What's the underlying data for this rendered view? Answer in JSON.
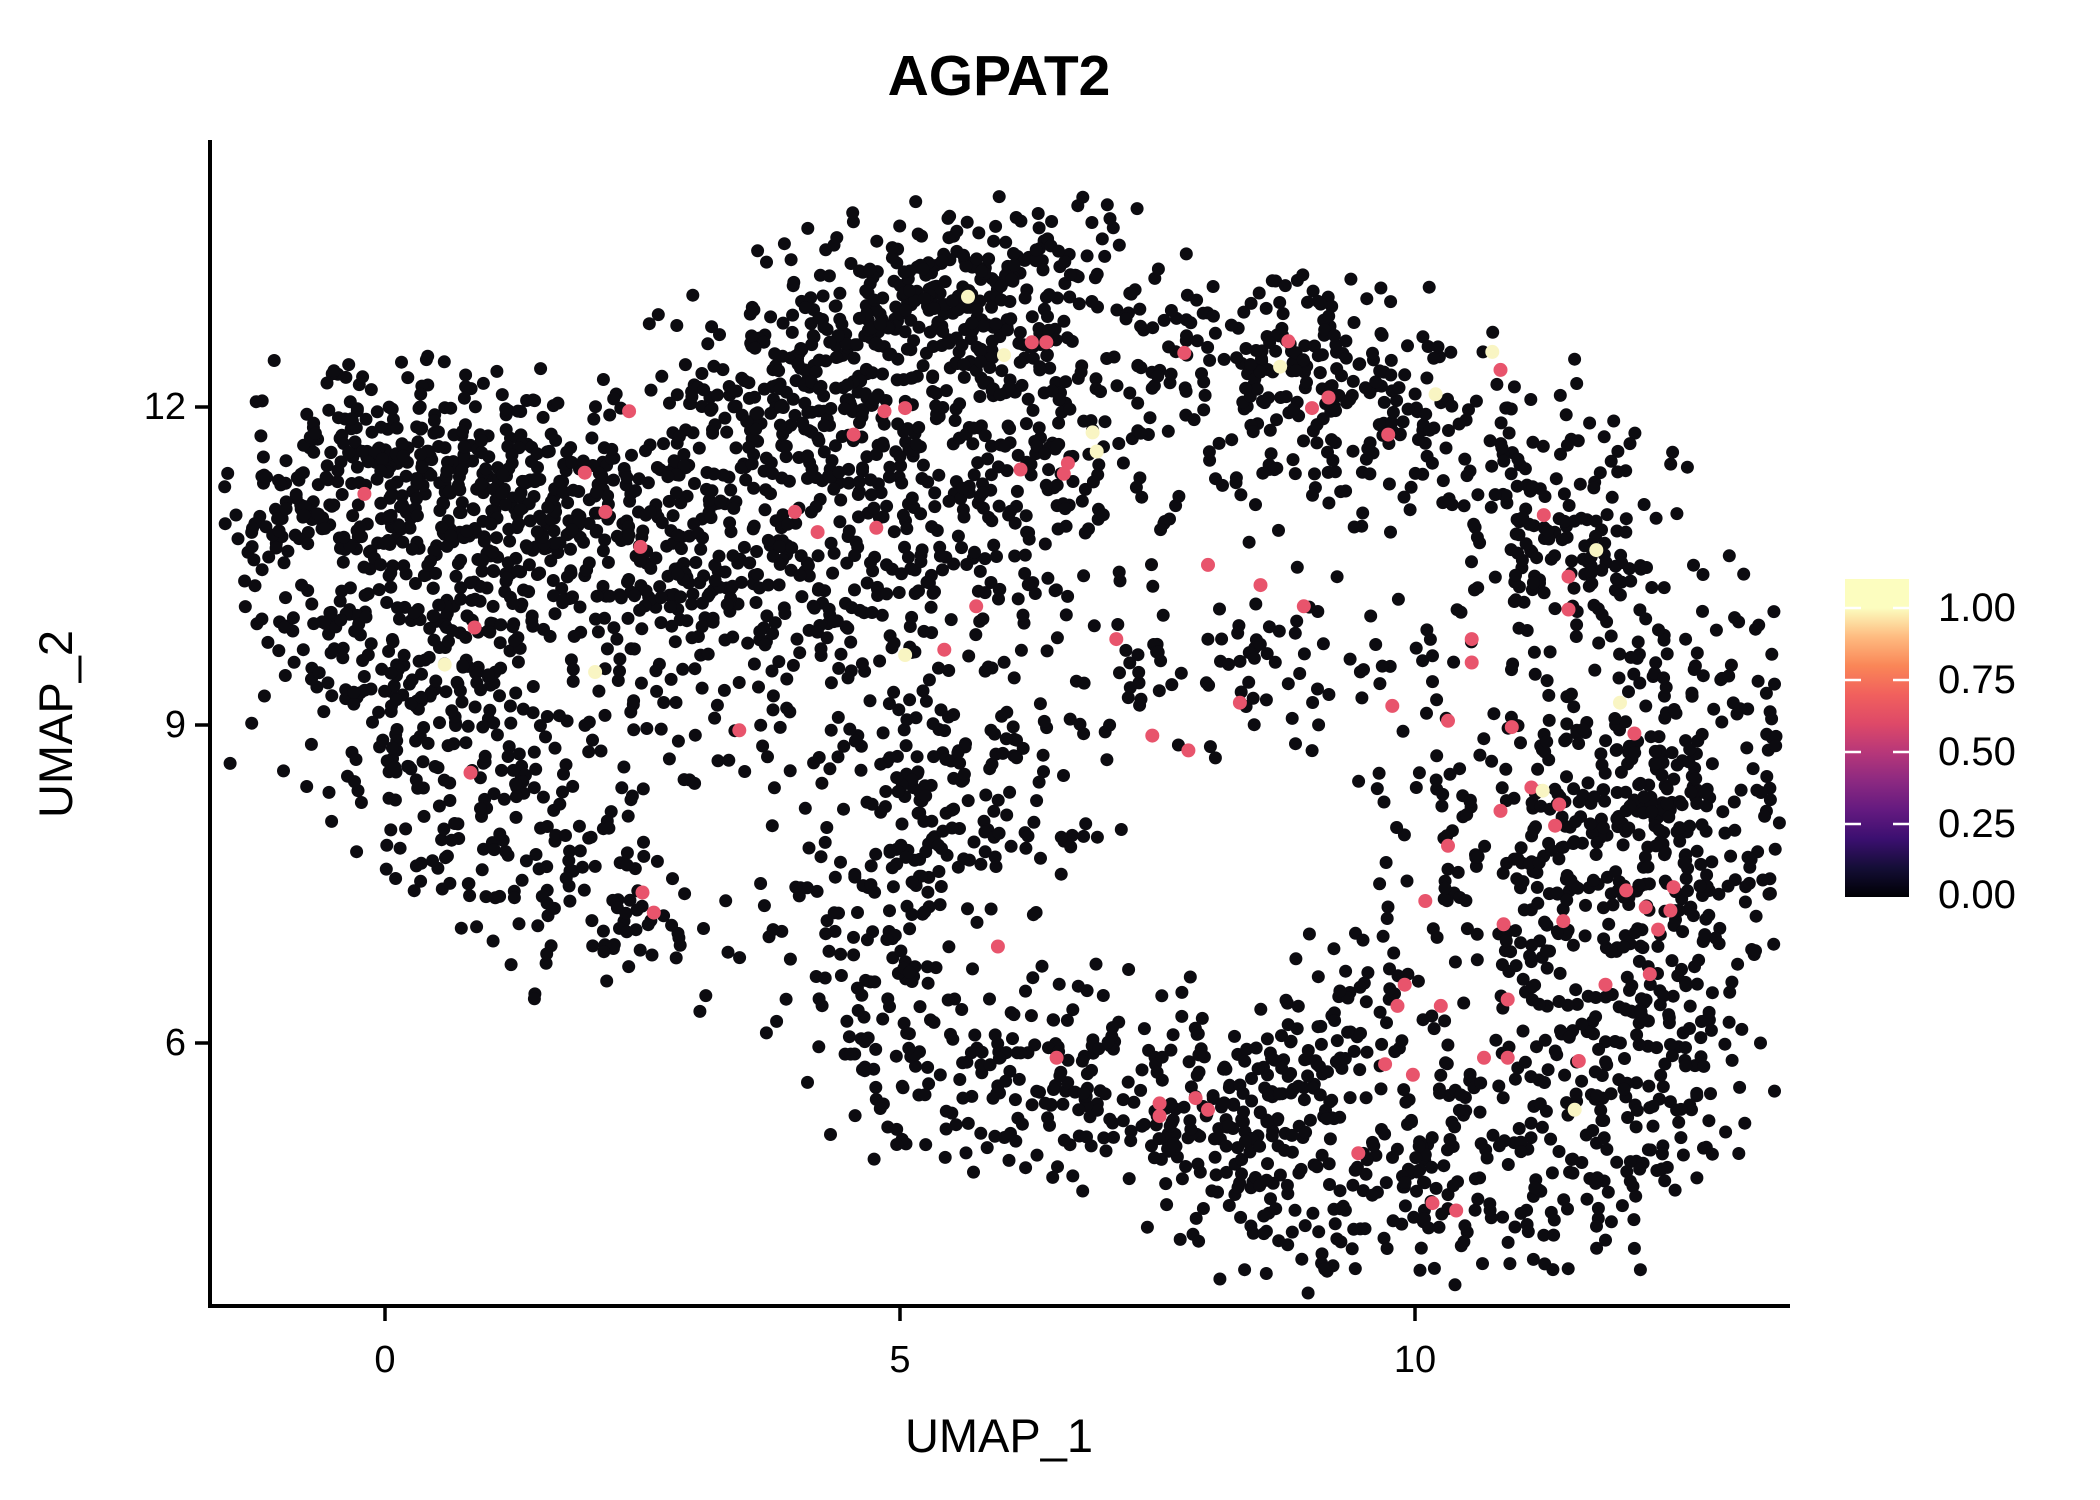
{
  "chart_data": {
    "type": "scatter",
    "title": "AGPAT2",
    "xlabel": "UMAP_1",
    "ylabel": "UMAP_2",
    "x_ticks": [
      "0",
      "5",
      "10"
    ],
    "y_ticks": [
      "12",
      "9",
      "6"
    ],
    "xlim": [
      -1.7,
      13.6
    ],
    "ylim": [
      3.5,
      14.5
    ],
    "grid": false,
    "legend_position": "right",
    "point_radius_px": 6.5,
    "seed": 42,
    "colors": {
      "background": "#ffffff",
      "zero_expression": "#0C0B10",
      "mid_expression": "#E8546C",
      "high_expression": "#F9F5C3",
      "axis": "#000000"
    },
    "colorbar": {
      "labels": [
        "1.00",
        "0.75",
        "0.50",
        "0.25",
        "0.00"
      ],
      "values": [
        1.0,
        0.75,
        0.5,
        0.25,
        0.0
      ],
      "colormap": "magma",
      "vmin": 0.0,
      "vmax": 1.0,
      "bar_top_value": 1.1,
      "stops": [
        [
          0.0,
          "#000004"
        ],
        [
          0.1,
          "#140e36"
        ],
        [
          0.2,
          "#3b0f70"
        ],
        [
          0.3,
          "#641a80"
        ],
        [
          0.4,
          "#8c2981"
        ],
        [
          0.5,
          "#b73779"
        ],
        [
          0.6,
          "#de4968"
        ],
        [
          0.7,
          "#f1605d"
        ],
        [
          0.8,
          "#fa8657"
        ],
        [
          0.9,
          "#febb80"
        ],
        [
          1.0,
          "#fcfdbf"
        ]
      ]
    },
    "background_clusters": [
      {
        "cx": 0.05,
        "cy": 11.41,
        "sx": 0.73,
        "sy": 0.52,
        "n": 280
      },
      {
        "cx": 1.41,
        "cy": 10.93,
        "sx": 0.68,
        "sy": 0.57,
        "n": 220
      },
      {
        "cx": 0.44,
        "cy": 9.61,
        "sx": 0.78,
        "sy": 0.66,
        "n": 200
      },
      {
        "cx": 0.92,
        "cy": 8.2,
        "sx": 0.78,
        "sy": 0.57,
        "n": 120
      },
      {
        "cx": -0.83,
        "cy": 10.18,
        "sx": 0.44,
        "sy": 0.85,
        "n": 60
      },
      {
        "cx": 2.28,
        "cy": 7.35,
        "sx": 0.58,
        "sy": 0.52,
        "n": 70
      },
      {
        "cx": 5.19,
        "cy": 13.01,
        "sx": 0.78,
        "sy": 0.45,
        "n": 220
      },
      {
        "cx": 4.03,
        "cy": 12.16,
        "sx": 0.68,
        "sy": 0.42,
        "n": 100
      },
      {
        "cx": 4.03,
        "cy": 11.59,
        "sx": 0.87,
        "sy": 0.66,
        "n": 220
      },
      {
        "cx": 3.83,
        "cy": 10.18,
        "sx": 0.97,
        "sy": 0.57,
        "n": 150
      },
      {
        "cx": 2.57,
        "cy": 10.93,
        "sx": 0.58,
        "sy": 0.57,
        "n": 90
      },
      {
        "cx": 6.46,
        "cy": 12.73,
        "sx": 0.78,
        "sy": 0.57,
        "n": 170
      },
      {
        "cx": 5.97,
        "cy": 11.31,
        "sx": 0.68,
        "sy": 0.57,
        "n": 130
      },
      {
        "cx": 8.88,
        "cy": 11.88,
        "sx": 0.87,
        "sy": 0.66,
        "n": 150
      },
      {
        "cx": 8.79,
        "cy": 12.54,
        "sx": 0.68,
        "sy": 0.38,
        "n": 80
      },
      {
        "cx": 10.53,
        "cy": 11.78,
        "sx": 0.58,
        "sy": 0.47,
        "n": 60
      },
      {
        "cx": 11.46,
        "cy": 10.75,
        "sx": 0.58,
        "sy": 0.52,
        "n": 150
      },
      {
        "cx": 12.52,
        "cy": 8.39,
        "sx": 0.63,
        "sy": 1.04,
        "n": 280
      },
      {
        "cx": 11.12,
        "cy": 7.82,
        "sx": 0.78,
        "sy": 0.85,
        "n": 220
      },
      {
        "cx": 11.99,
        "cy": 5.93,
        "sx": 0.78,
        "sy": 0.75,
        "n": 200
      },
      {
        "cx": 9.85,
        "cy": 4.71,
        "sx": 1.26,
        "sy": 0.57,
        "n": 260
      },
      {
        "cx": 7.72,
        "cy": 5.46,
        "sx": 0.78,
        "sy": 0.57,
        "n": 130
      },
      {
        "cx": 9.37,
        "cy": 6.12,
        "sx": 0.53,
        "sy": 0.42,
        "n": 70
      },
      {
        "cx": 8.54,
        "cy": 5.42,
        "sx": 0.44,
        "sy": 0.33,
        "n": 50
      },
      {
        "cx": 5.49,
        "cy": 8.29,
        "sx": 0.87,
        "sy": 0.57,
        "n": 160
      },
      {
        "cx": 4.71,
        "cy": 6.88,
        "sx": 0.58,
        "sy": 0.75,
        "n": 110
      },
      {
        "cx": 5.58,
        "cy": 5.56,
        "sx": 0.68,
        "sy": 0.47,
        "n": 80
      },
      {
        "cx": 2.28,
        "cy": 9.24,
        "sx": 1.17,
        "sy": 0.57,
        "n": 80
      },
      {
        "cx": 5.49,
        "cy": 10.18,
        "sx": 1.17,
        "sy": 0.57,
        "n": 100
      },
      {
        "cx": 8.4,
        "cy": 9.61,
        "sx": 1.17,
        "sy": 0.47,
        "n": 90
      },
      {
        "cx": 6.6,
        "cy": 5.84,
        "sx": 0.49,
        "sy": 0.47,
        "n": 50
      }
    ],
    "highlight_points": {
      "mid_value": 0.75,
      "high_value": 1.0,
      "mid": [
        [
          2.37,
          11.96
        ],
        [
          1.94,
          11.38
        ],
        [
          2.14,
          11.01
        ],
        [
          2.48,
          10.68
        ],
        [
          -0.2,
          11.18
        ],
        [
          0.87,
          9.92
        ],
        [
          3.98,
          11.01
        ],
        [
          4.2,
          10.82
        ],
        [
          4.77,
          10.86
        ],
        [
          5.05,
          11.99
        ],
        [
          4.85,
          11.96
        ],
        [
          4.55,
          11.74
        ],
        [
          5.74,
          10.12
        ],
        [
          5.43,
          9.71
        ],
        [
          3.44,
          8.95
        ],
        [
          0.83,
          8.55
        ],
        [
          2.5,
          7.42
        ],
        [
          2.61,
          7.23
        ],
        [
          5.95,
          6.91
        ],
        [
          6.28,
          12.61
        ],
        [
          6.42,
          12.61
        ],
        [
          7.76,
          12.51
        ],
        [
          8.77,
          12.62
        ],
        [
          10.83,
          12.35
        ],
        [
          9.16,
          12.09
        ],
        [
          9.0,
          11.99
        ],
        [
          9.74,
          11.74
        ],
        [
          6.63,
          11.47
        ],
        [
          6.59,
          11.37
        ],
        [
          6.17,
          11.41
        ],
        [
          11.25,
          10.98
        ],
        [
          11.49,
          10.4
        ],
        [
          11.49,
          10.09
        ],
        [
          7.99,
          10.51
        ],
        [
          8.5,
          10.32
        ],
        [
          8.92,
          10.12
        ],
        [
          7.1,
          9.81
        ],
        [
          10.55,
          9.81
        ],
        [
          10.55,
          9.59
        ],
        [
          8.3,
          9.21
        ],
        [
          9.78,
          9.18
        ],
        [
          10.32,
          9.04
        ],
        [
          10.94,
          8.98
        ],
        [
          7.45,
          8.9
        ],
        [
          7.8,
          8.76
        ],
        [
          12.13,
          8.92
        ],
        [
          11.13,
          8.41
        ],
        [
          11.4,
          8.25
        ],
        [
          10.83,
          8.19
        ],
        [
          11.36,
          8.05
        ],
        [
          10.32,
          7.86
        ],
        [
          10.1,
          7.34
        ],
        [
          12.05,
          7.44
        ],
        [
          12.51,
          7.47
        ],
        [
          12.24,
          7.28
        ],
        [
          12.48,
          7.25
        ],
        [
          10.86,
          7.12
        ],
        [
          11.44,
          7.15
        ],
        [
          12.36,
          7.07
        ],
        [
          12.28,
          6.65
        ],
        [
          11.85,
          6.55
        ],
        [
          10.9,
          6.41
        ],
        [
          9.9,
          6.55
        ],
        [
          9.83,
          6.35
        ],
        [
          10.25,
          6.35
        ],
        [
          6.52,
          5.86
        ],
        [
          9.71,
          5.8
        ],
        [
          9.98,
          5.7
        ],
        [
          10.67,
          5.86
        ],
        [
          10.9,
          5.86
        ],
        [
          11.59,
          5.83
        ],
        [
          7.52,
          5.43
        ],
        [
          7.87,
          5.48
        ],
        [
          7.99,
          5.37
        ],
        [
          7.52,
          5.31
        ],
        [
          9.45,
          4.96
        ],
        [
          10.17,
          4.49
        ],
        [
          10.4,
          4.42
        ]
      ],
      "high": [
        [
          2.04,
          9.5
        ],
        [
          6.01,
          12.49
        ],
        [
          5.66,
          13.04
        ],
        [
          6.87,
          11.76
        ],
        [
          6.91,
          11.58
        ],
        [
          8.69,
          12.38
        ],
        [
          10.2,
          12.12
        ],
        [
          10.75,
          12.52
        ],
        [
          11.76,
          10.65
        ],
        [
          11.99,
          9.21
        ],
        [
          11.24,
          8.38
        ],
        [
          11.55,
          5.37
        ],
        [
          5.05,
          9.66
        ],
        [
          0.58,
          9.57
        ]
      ]
    }
  }
}
